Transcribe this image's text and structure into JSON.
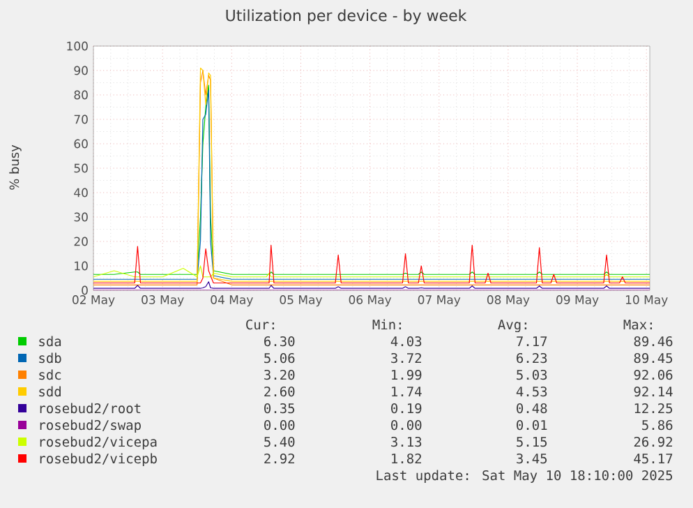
{
  "chart_data": {
    "type": "line",
    "title": "Utilization per device - by week",
    "ylabel": "% busy",
    "x": [
      "2025-05-02T00:00",
      "2025-05-02T07:10",
      "2025-05-02T14:20",
      "2025-05-02T15:20",
      "2025-05-02T16:20",
      "2025-05-03T00:00",
      "2025-05-03T07:10",
      "2025-05-03T12:00",
      "2025-05-03T13:10",
      "2025-05-03T14:00",
      "2025-05-03T15:00",
      "2025-05-03T16:00",
      "2025-05-03T16:40",
      "2025-05-03T17:40",
      "2025-05-04T00:00",
      "2025-05-04T12:00",
      "2025-05-04T13:00",
      "2025-05-04T13:40",
      "2025-05-04T14:40",
      "2025-05-05T00:00",
      "2025-05-05T12:00",
      "2025-05-05T13:00",
      "2025-05-05T14:00",
      "2025-05-06T00:00",
      "2025-05-06T11:20",
      "2025-05-06T12:20",
      "2025-05-06T13:20",
      "2025-05-06T16:50",
      "2025-05-06T17:50",
      "2025-05-06T18:50",
      "2025-05-07T00:00",
      "2025-05-07T10:30",
      "2025-05-07T11:30",
      "2025-05-07T12:30",
      "2025-05-07T16:00",
      "2025-05-07T17:00",
      "2025-05-07T18:00",
      "2025-05-08T00:00",
      "2025-05-08T09:50",
      "2025-05-08T10:50",
      "2025-05-08T11:50",
      "2025-05-08T14:50",
      "2025-05-08T15:50",
      "2025-05-08T16:50",
      "2025-05-09T00:00",
      "2025-05-09T09:10",
      "2025-05-09T10:10",
      "2025-05-09T11:10",
      "2025-05-09T14:40",
      "2025-05-09T15:40",
      "2025-05-09T16:40",
      "2025-05-10T00:00",
      "2025-05-10T01:10"
    ],
    "series": [
      {
        "name": "sda",
        "color": "#00cc00",
        "values": [
          6.5,
          6.5,
          7.5,
          7.5,
          6.5,
          6.5,
          6.5,
          6.5,
          30,
          60,
          75,
          84,
          30,
          8,
          6.5,
          6.5,
          6.5,
          7.5,
          6.5,
          6.5,
          6.5,
          6.5,
          6.5,
          6.5,
          6.5,
          7,
          6.5,
          6.5,
          7.5,
          6.5,
          6.5,
          6.5,
          7.5,
          6.5,
          6.5,
          6.5,
          6.5,
          6.5,
          6.5,
          7.5,
          6.5,
          6.5,
          6.5,
          6.5,
          6.5,
          6.5,
          7.5,
          6.5,
          6.5,
          6.5,
          6.5,
          6.5,
          6.5
        ]
      },
      {
        "name": "sdb",
        "color": "#0066b3",
        "values": [
          4.5,
          4.5,
          4.5,
          4.5,
          4.5,
          4.5,
          4.5,
          4.5,
          20,
          70,
          72,
          82,
          20,
          6,
          4.5,
          4.5,
          4.5,
          4.5,
          4.5,
          4.5,
          4.5,
          4.5,
          4.5,
          4.5,
          4.5,
          4.5,
          4.5,
          4.5,
          4.5,
          4.5,
          4.5,
          4.5,
          4.5,
          4.5,
          4.5,
          4.5,
          4.5,
          4.5,
          4.5,
          4.5,
          4.5,
          4.5,
          4.5,
          4.5,
          4.5,
          4.5,
          4.5,
          4.5,
          4.5,
          4.5,
          4.5,
          4.5,
          4.5
        ]
      },
      {
        "name": "sdc",
        "color": "#ff8000",
        "values": [
          2.2,
          2.2,
          2.2,
          2.2,
          2.2,
          2.2,
          2.2,
          2.2,
          85,
          90,
          80,
          88,
          86,
          5,
          2.2,
          2.2,
          2.2,
          2.2,
          2.2,
          2.2,
          2.2,
          2.2,
          2.2,
          2.2,
          2.2,
          2.2,
          2.2,
          2.2,
          2.2,
          2.2,
          2.2,
          2.2,
          2.2,
          2.2,
          2.2,
          2.2,
          2.2,
          2.2,
          2.2,
          2.2,
          2.2,
          2.2,
          2.2,
          2.2,
          2.2,
          2.2,
          2.2,
          2.2,
          2.2,
          2.2,
          2.2,
          2.2,
          2.2
        ]
      },
      {
        "name": "sdd",
        "color": "#ffcc00",
        "values": [
          3.7,
          3.7,
          3.7,
          3.7,
          3.7,
          3.7,
          3.7,
          3.7,
          91,
          90,
          76,
          89,
          88,
          5,
          3.7,
          3.7,
          3.7,
          3.7,
          3.7,
          3.7,
          3.7,
          3.7,
          3.7,
          3.7,
          3.7,
          3.7,
          3.7,
          3.7,
          3.7,
          3.7,
          3.7,
          3.7,
          3.7,
          3.7,
          3.7,
          3.7,
          3.7,
          3.7,
          3.7,
          3.7,
          3.7,
          3.7,
          3.7,
          3.7,
          3.7,
          3.7,
          3.7,
          3.7,
          3.7,
          3.7,
          3.7,
          3.7,
          3.7
        ]
      },
      {
        "name": "rosebud2/root",
        "color": "#330099",
        "values": [
          0.8,
          0.8,
          0.8,
          2,
          0.8,
          0.8,
          0.8,
          0.8,
          0.8,
          1,
          1.5,
          3.5,
          1,
          0.8,
          0.8,
          0.8,
          0.8,
          2,
          0.8,
          0.8,
          0.8,
          1.5,
          0.8,
          0.8,
          0.8,
          1.5,
          0.8,
          0.8,
          1,
          0.8,
          0.8,
          0.8,
          1.8,
          0.8,
          0.8,
          0.8,
          0.8,
          0.8,
          0.8,
          1.8,
          0.8,
          0.8,
          0.8,
          0.8,
          0.8,
          0.8,
          1.8,
          0.8,
          0.8,
          0.8,
          0.8,
          0.8,
          0.8
        ]
      },
      {
        "name": "rosebud2/swap",
        "color": "#990099",
        "values": [
          0,
          0,
          0,
          0,
          0,
          0,
          0,
          0,
          0,
          0,
          0,
          0,
          0,
          0,
          0,
          0,
          0,
          0,
          0,
          0,
          0,
          0,
          0,
          0,
          0,
          0,
          0,
          0,
          0,
          0,
          0,
          0,
          0,
          0,
          0,
          0,
          0,
          0,
          0,
          0,
          0,
          0,
          0,
          0,
          0,
          0,
          0,
          0,
          0,
          0,
          0,
          0,
          0
        ]
      },
      {
        "name": "rosebud2/vicepa",
        "color": "#ccff00",
        "values": [
          5.5,
          8,
          5.5,
          5.5,
          5.5,
          5.5,
          9,
          5.5,
          10,
          5.5,
          5.5,
          5.5,
          5.5,
          7,
          5.5,
          5.5,
          7,
          5.5,
          5.5,
          5.5,
          5.5,
          5.5,
          5.5,
          5.5,
          5.5,
          5.5,
          5.5,
          5.5,
          5.5,
          5.5,
          5.5,
          5.5,
          5.5,
          5.5,
          5.5,
          5.5,
          5.5,
          5.5,
          5.5,
          5.5,
          5.5,
          5.5,
          5.5,
          5.5,
          5.5,
          5.5,
          6.5,
          5.5,
          5.5,
          5.5,
          5.5,
          5.5,
          5.5
        ]
      },
      {
        "name": "rosebud2/vicepb",
        "color": "#ff0000",
        "values": [
          3,
          3,
          3,
          18,
          3,
          3,
          3,
          3,
          3,
          5,
          17,
          8,
          6,
          3,
          3,
          3,
          3,
          18.5,
          3,
          3,
          3,
          14.5,
          3,
          3,
          3,
          15,
          3,
          3,
          10,
          3,
          3,
          3,
          18.5,
          3,
          3,
          7,
          3,
          3,
          3,
          17.5,
          3,
          3,
          6.5,
          3,
          3,
          3,
          14.5,
          3,
          3,
          5.5,
          3,
          3,
          3
        ]
      }
    ],
    "xlim": [
      "2025-05-02T00:00",
      "2025-05-10T01:10"
    ],
    "xticks": [
      {
        "value": "2025-05-02",
        "label": "02 May"
      },
      {
        "value": "2025-05-03",
        "label": "03 May"
      },
      {
        "value": "2025-05-04",
        "label": "04 May"
      },
      {
        "value": "2025-05-05",
        "label": "05 May"
      },
      {
        "value": "2025-05-06",
        "label": "06 May"
      },
      {
        "value": "2025-05-07",
        "label": "07 May"
      },
      {
        "value": "2025-05-08",
        "label": "08 May"
      },
      {
        "value": "2025-05-09",
        "label": "09 May"
      },
      {
        "value": "2025-05-10",
        "label": "10 May"
      }
    ],
    "ylim": [
      0,
      100
    ],
    "yticks": [
      0,
      10,
      20,
      30,
      40,
      50,
      60,
      70,
      80,
      90,
      100
    ],
    "grid": true,
    "legend": "bottom",
    "marker": "none",
    "annotations": [
      "Cur:",
      "Min:",
      "Avg:",
      "Max:",
      "6.30",
      "4.03",
      "7.17",
      "89.46",
      "5.06",
      "3.72",
      "6.23",
      "89.45",
      "3.20",
      "1.99",
      "5.03",
      "92.06",
      "2.60",
      "1.74",
      "4.53",
      "92.14",
      "0.35",
      "0.19",
      "0.48",
      "12.25",
      "0.00",
      "0.00",
      "0.01",
      "5.86",
      "5.40",
      "3.13",
      "5.15",
      "26.92",
      "2.92",
      "1.82",
      "3.45",
      "45.17",
      "Last update: Sat May 10 18:10:00 2025"
    ]
  }
}
